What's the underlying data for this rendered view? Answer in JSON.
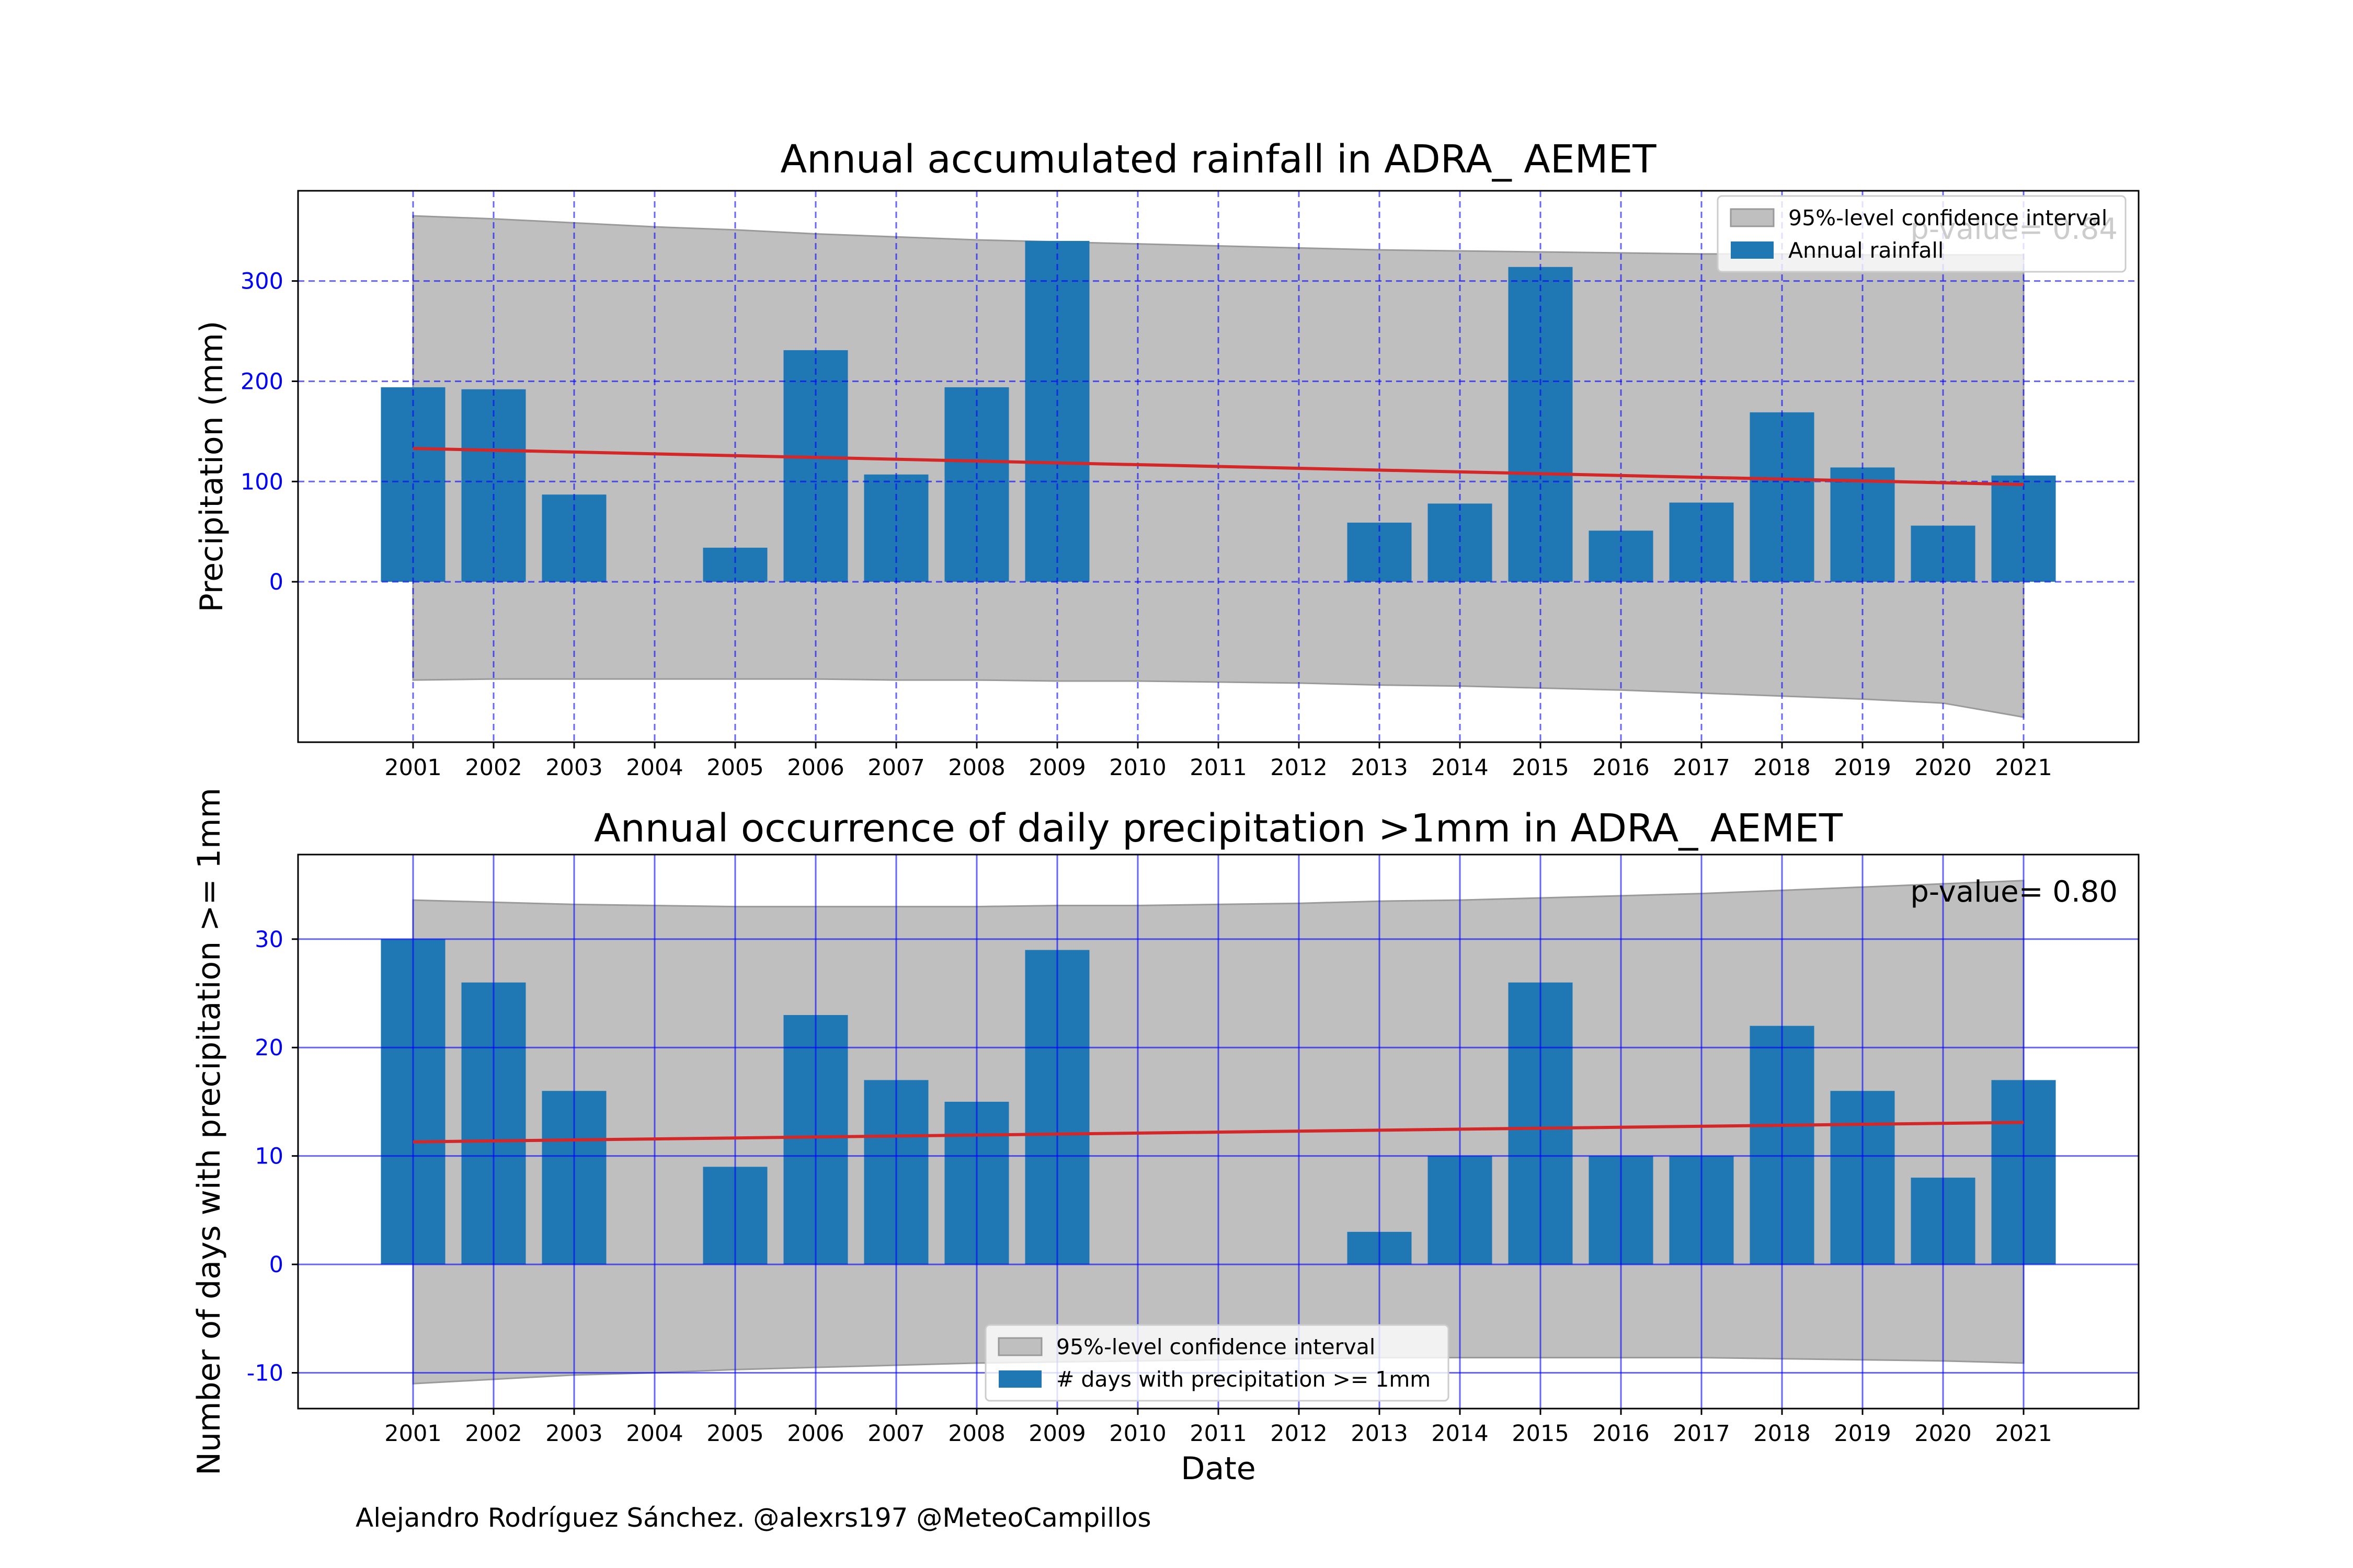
{
  "credit": "Alejandro Rodríguez Sánchez. @alexrs197 @MeteoCampillos",
  "chart_data": [
    {
      "type": "bar",
      "title": "Annual accumulated rainfall in ADRA_ AEMET",
      "xlabel": "",
      "ylabel": "Precipitation (mm)",
      "categories": [
        "2001",
        "2002",
        "2003",
        "2004",
        "2005",
        "2006",
        "2007",
        "2008",
        "2009",
        "2010",
        "2011",
        "2012",
        "2013",
        "2014",
        "2015",
        "2016",
        "2017",
        "2018",
        "2019",
        "2020",
        "2021"
      ],
      "yticks": [
        0,
        100,
        200,
        300
      ],
      "ylim": [
        -160,
        390
      ],
      "grid": {
        "on": true,
        "style": "dashed",
        "color": "#0000ff"
      },
      "bar_color": "#1f77b4",
      "trend_color": "#d62728",
      "band_color": "#bfbfbf",
      "series": [
        {
          "name": "Annual rainfall",
          "values": [
            194,
            192,
            87,
            0,
            34,
            231,
            107,
            194,
            340,
            0,
            0,
            0,
            59,
            78,
            314,
            51,
            79,
            169,
            114,
            56,
            106
          ]
        }
      ],
      "trend": {
        "start": 133,
        "end": 97
      },
      "confidence_band": {
        "name": "95%-level confidence interval",
        "upper": [
          365,
          362,
          358,
          354,
          351,
          347,
          344,
          341,
          339,
          337,
          335,
          333,
          331,
          330,
          329,
          328,
          327,
          327,
          326,
          326,
          326
        ],
        "lower": [
          -98,
          -97,
          -97,
          -97,
          -97,
          -97,
          -98,
          -98,
          -99,
          -99,
          -100,
          -101,
          -103,
          -104,
          -106,
          -108,
          -111,
          -114,
          -117,
          -121,
          -135
        ]
      },
      "pvalue_text": "p-value= 0.84",
      "legend": {
        "position": "top-right",
        "entries": [
          "95%-level confidence interval",
          "Annual rainfall"
        ]
      }
    },
    {
      "type": "bar",
      "title": "Annual occurrence of daily precipitation >1mm in ADRA_ AEMET",
      "xlabel": "Date",
      "ylabel": "Number of days with precipitation >= 1mm",
      "categories": [
        "2001",
        "2002",
        "2003",
        "2004",
        "2005",
        "2006",
        "2007",
        "2008",
        "2009",
        "2010",
        "2011",
        "2012",
        "2013",
        "2014",
        "2015",
        "2016",
        "2017",
        "2018",
        "2019",
        "2020",
        "2021"
      ],
      "yticks": [
        -10,
        0,
        10,
        20,
        30
      ],
      "ylim": [
        -13.3,
        37.8
      ],
      "grid": {
        "on": true,
        "style": "solid",
        "color": "#0000ff"
      },
      "bar_color": "#1f77b4",
      "trend_color": "#d62728",
      "band_color": "#bfbfbf",
      "series": [
        {
          "name": "# days with precipitation >= 1mm",
          "values": [
            30,
            26,
            16,
            0,
            9,
            23,
            17,
            15,
            29,
            0,
            0,
            0,
            3,
            10,
            26,
            10,
            10,
            22,
            16,
            8,
            17
          ]
        }
      ],
      "trend": {
        "start": 11.3,
        "end": 13.1
      },
      "confidence_band": {
        "name": "95%-level confidence interval",
        "upper": [
          33.6,
          33.4,
          33.2,
          33.1,
          33.0,
          33.0,
          33.0,
          33.0,
          33.1,
          33.1,
          33.2,
          33.3,
          33.5,
          33.6,
          33.8,
          34.0,
          34.2,
          34.5,
          34.8,
          35.1,
          35.4
        ],
        "lower": [
          -11.0,
          -10.6,
          -10.2,
          -10.0,
          -9.7,
          -9.5,
          -9.3,
          -9.1,
          -9.0,
          -8.9,
          -8.8,
          -8.7,
          -8.6,
          -8.6,
          -8.6,
          -8.6,
          -8.6,
          -8.7,
          -8.8,
          -8.9,
          -9.1
        ]
      },
      "pvalue_text": "p-value= 0.80",
      "legend": {
        "position": "bottom-center",
        "entries": [
          "95%-level confidence interval",
          "# days with precipitation >= 1mm"
        ]
      }
    }
  ]
}
